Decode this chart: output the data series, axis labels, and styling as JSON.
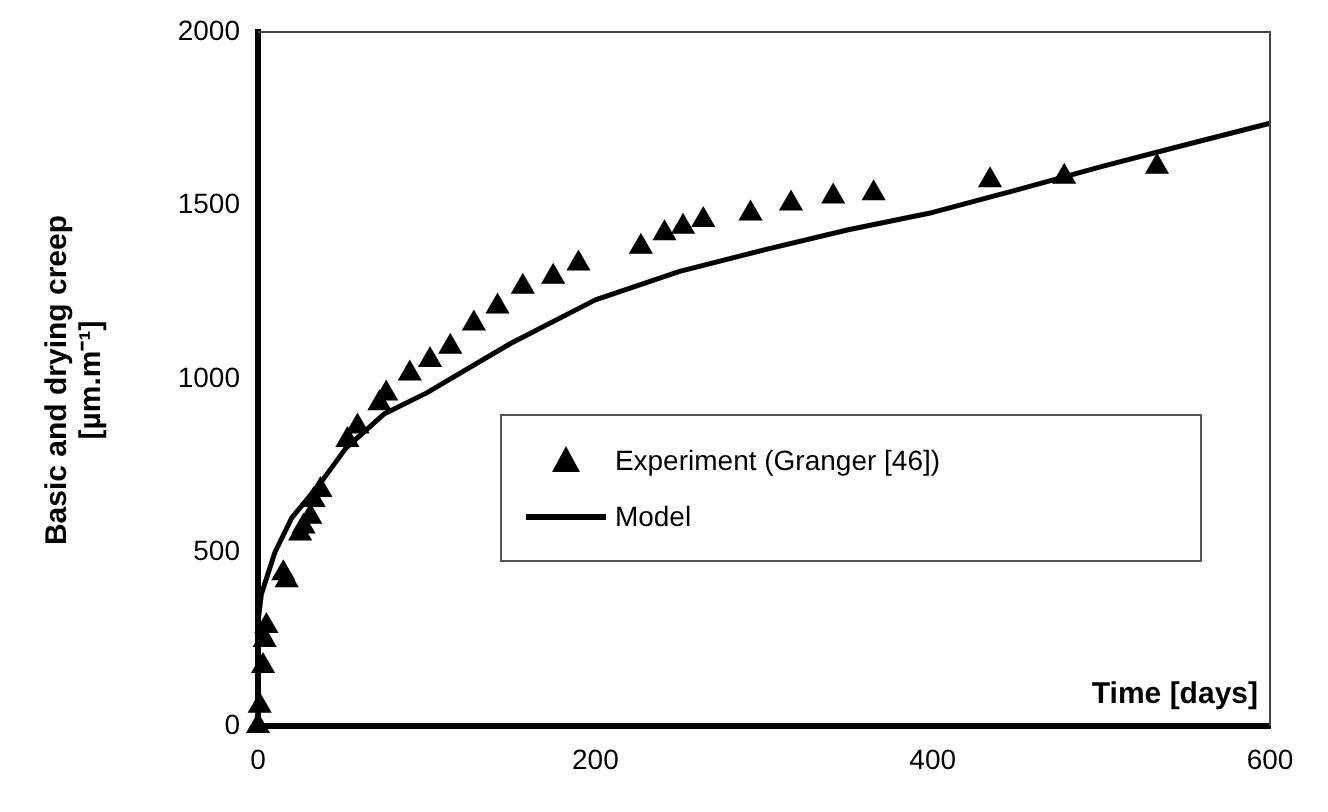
{
  "chart_data": {
    "type": "scatter",
    "xlabel": "Time [days]",
    "ylabel": "Basic and drying creep [µm.m⁻¹]",
    "xlim": [
      0,
      600
    ],
    "xticks": [
      0,
      200,
      400,
      600
    ],
    "ylim": [
      0,
      2000
    ],
    "yticks": [
      0,
      500,
      1000,
      1500,
      2000
    ],
    "grid": false,
    "legend": "center right",
    "series": [
      {
        "name": "Experiment (Granger [46])",
        "type": "scatter",
        "marker": "triangle",
        "color": "#000000",
        "x": [
          0,
          1,
          3,
          4,
          5,
          15,
          17,
          25,
          27,
          31,
          33,
          37,
          53,
          59,
          72,
          76,
          90,
          102,
          114,
          128,
          142,
          157,
          175,
          190,
          227,
          241,
          252,
          264,
          292,
          316,
          341,
          365,
          434,
          478,
          533
        ],
        "values": [
          0,
          58,
          173,
          248,
          288,
          440,
          420,
          555,
          575,
          603,
          651,
          680,
          824,
          863,
          930,
          958,
          1016,
          1055,
          1093,
          1160,
          1209,
          1266,
          1295,
          1333,
          1381,
          1420,
          1439,
          1458,
          1477,
          1506,
          1526,
          1535,
          1573,
          1583,
          1612
        ]
      },
      {
        "name": "Model",
        "type": "line",
        "marker": "none",
        "color": "#000000",
        "x": [
          0,
          2,
          10,
          20,
          37,
          52,
          75,
          100,
          150,
          200,
          250,
          300,
          350,
          400,
          450,
          500,
          550,
          600
        ],
        "values": [
          300,
          380,
          500,
          600,
          700,
          800,
          900,
          960,
          1103,
          1228,
          1310,
          1372,
          1430,
          1480,
          1545,
          1612,
          1675,
          1737
        ]
      }
    ]
  }
}
